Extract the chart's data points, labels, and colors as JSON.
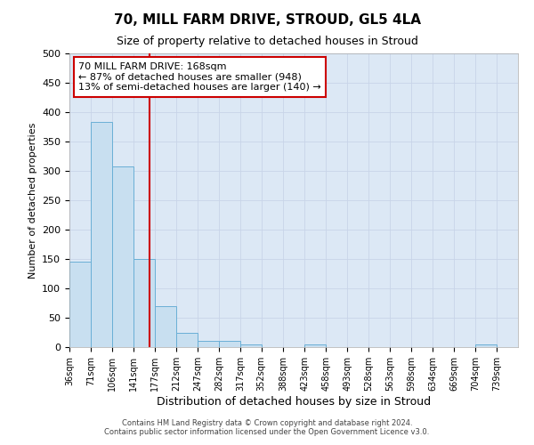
{
  "title": "70, MILL FARM DRIVE, STROUD, GL5 4LA",
  "subtitle": "Size of property relative to detached houses in Stroud",
  "xlabel": "Distribution of detached houses by size in Stroud",
  "ylabel": "Number of detached properties",
  "footer": "Contains HM Land Registry data © Crown copyright and database right 2024.\nContains public sector information licensed under the Open Government Licence v3.0.",
  "bin_edges": [
    36,
    71,
    106,
    141,
    177,
    212,
    247,
    282,
    317,
    352,
    388,
    423,
    458,
    493,
    528,
    563,
    598,
    634,
    669,
    704,
    739,
    774
  ],
  "bin_heights": [
    145,
    383,
    307,
    150,
    70,
    25,
    10,
    10,
    5,
    0,
    0,
    5,
    0,
    0,
    0,
    0,
    0,
    0,
    0,
    5,
    0
  ],
  "tick_labels": [
    "36sqm",
    "71sqm",
    "106sqm",
    "141sqm",
    "177sqm",
    "212sqm",
    "247sqm",
    "282sqm",
    "317sqm",
    "352sqm",
    "388sqm",
    "423sqm",
    "458sqm",
    "493sqm",
    "528sqm",
    "563sqm",
    "598sqm",
    "634sqm",
    "669sqm",
    "704sqm",
    "739sqm"
  ],
  "bar_color": "#c8dff0",
  "bar_edge_color": "#6aafd6",
  "grid_color": "#c8d4e8",
  "plot_bg_color": "#dce8f5",
  "fig_bg_color": "#ffffff",
  "vline_x": 168,
  "vline_color": "#cc0000",
  "annotation_line1": "70 MILL FARM DRIVE: 168sqm",
  "annotation_line2": "← 87% of detached houses are smaller (948)",
  "annotation_line3": "13% of semi-detached houses are larger (140) →",
  "annotation_box_color": "white",
  "annotation_box_edge": "#cc0000",
  "ylim": [
    0,
    500
  ],
  "yticks": [
    0,
    50,
    100,
    150,
    200,
    250,
    300,
    350,
    400,
    450,
    500
  ],
  "title_fontsize": 11,
  "subtitle_fontsize": 9,
  "xlabel_fontsize": 9,
  "ylabel_fontsize": 8,
  "footer_fontsize": 6,
  "tick_fontsize": 7
}
